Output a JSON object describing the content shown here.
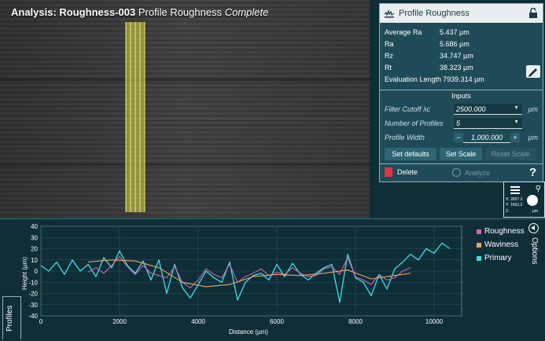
{
  "title": {
    "main": "Analysis: Roughness-003",
    "subtitle": "Profile Roughness",
    "status": "Complete"
  },
  "panel": {
    "header": "Profile Roughness",
    "stats": [
      {
        "key": "Average Ra",
        "value": "5.437 µm"
      },
      {
        "key": "Ra",
        "value": "5.686 µm"
      },
      {
        "key": "Rz",
        "value": "34.747 µm"
      },
      {
        "key": "Rt",
        "value": "38.323 µm"
      },
      {
        "key": "Evaluation Length",
        "value": "7939.314 µm"
      }
    ],
    "inputs_title": "Inputs",
    "filter_cutoff": {
      "label": "Filter Cutoff λc",
      "value": "2500.000",
      "unit": "µm"
    },
    "num_profiles": {
      "label": "Number of Profiles",
      "value": "5"
    },
    "profile_width": {
      "label": "Profile Width",
      "value": "1,000.000",
      "unit": "µm",
      "minus": "−",
      "plus": "+"
    },
    "buttons": {
      "set_defaults": "Set defaults",
      "set_scale": "Set Scale",
      "reset_scale": "Reset Scale"
    },
    "delete": "Delete",
    "analyze": "Analyze",
    "help": "?"
  },
  "mini": {
    "x": "X: 2857.2",
    "y": "Y: 1662.2",
    "z": "Z:",
    "unit": "µm"
  },
  "tabs": {
    "profiles": "Profiles",
    "options": "Options"
  },
  "colors": {
    "roughness": "#d463b4",
    "waviness": "#e8a664",
    "primary": "#38e0e8"
  },
  "chart_data": {
    "type": "line",
    "xlabel": "Distance (µm)",
    "ylabel": "Height (µm)",
    "xlim": [
      0,
      10700
    ],
    "ylim": [
      -40,
      40
    ],
    "xticks": [
      0,
      2000,
      4000,
      6000,
      8000,
      10000
    ],
    "yticks": [
      40,
      30,
      20,
      10,
      0,
      -10,
      -20,
      -30,
      -40
    ],
    "series": [
      {
        "name": "Roughness",
        "x": [
          1200,
          1400,
          1600,
          1800,
          2000,
          2200,
          2400,
          2600,
          2800,
          3000,
          3200,
          3400,
          3600,
          3800,
          4000,
          4200,
          4400,
          4600,
          4800,
          5000,
          5200,
          5400,
          5600,
          5800,
          6000,
          6200,
          6400,
          6600,
          6800,
          7000,
          7200,
          7400,
          7600,
          7800,
          8000,
          8200,
          8400,
          8600,
          8800,
          9000,
          9200,
          9400
        ],
        "y": [
          -1,
          3,
          -2,
          5,
          13,
          4,
          -3,
          5,
          -2,
          -4,
          -6,
          4,
          -10,
          -15,
          -8,
          2,
          -3,
          -6,
          6,
          -10,
          -5,
          -2,
          2,
          -4,
          -1,
          -3,
          3,
          -2,
          -5,
          -4,
          2,
          4,
          -3,
          12,
          -5,
          -8,
          -12,
          -3,
          -8,
          -6,
          0,
          3
        ]
      },
      {
        "name": "Waviness",
        "x": [
          1200,
          1800,
          2400,
          3000,
          3600,
          4200,
          4800,
          5400,
          6000,
          6600,
          7200,
          7800,
          8400,
          9000,
          9400
        ],
        "y": [
          8,
          10,
          9,
          3,
          -10,
          -14,
          -12,
          -5,
          -3,
          -4,
          -2,
          1,
          -7,
          -4,
          -2
        ]
      },
      {
        "name": "Primary",
        "x": [
          0,
          200,
          400,
          600,
          800,
          1000,
          1200,
          1400,
          1600,
          1800,
          2000,
          2200,
          2400,
          2600,
          2800,
          3000,
          3200,
          3400,
          3600,
          3800,
          4000,
          4200,
          4400,
          4600,
          4800,
          5000,
          5200,
          5400,
          5600,
          5800,
          6000,
          6200,
          6400,
          6600,
          6800,
          7000,
          7200,
          7400,
          7600,
          7800,
          8000,
          8200,
          8400,
          8600,
          8800,
          9000,
          9200,
          9400,
          9600,
          9800,
          10000,
          10200,
          10400
        ],
        "y": [
          5,
          0,
          8,
          -3,
          10,
          0,
          6,
          -5,
          12,
          3,
          18,
          5,
          -2,
          9,
          -8,
          10,
          -20,
          6,
          -15,
          -24,
          -12,
          0,
          -6,
          -10,
          8,
          -26,
          -10,
          -4,
          -2,
          -8,
          6,
          -5,
          7,
          -3,
          -8,
          -2,
          3,
          6,
          -28,
          15,
          -6,
          -10,
          -22,
          -3,
          -16,
          2,
          8,
          15,
          10,
          20,
          16,
          25,
          20
        ]
      }
    ]
  }
}
